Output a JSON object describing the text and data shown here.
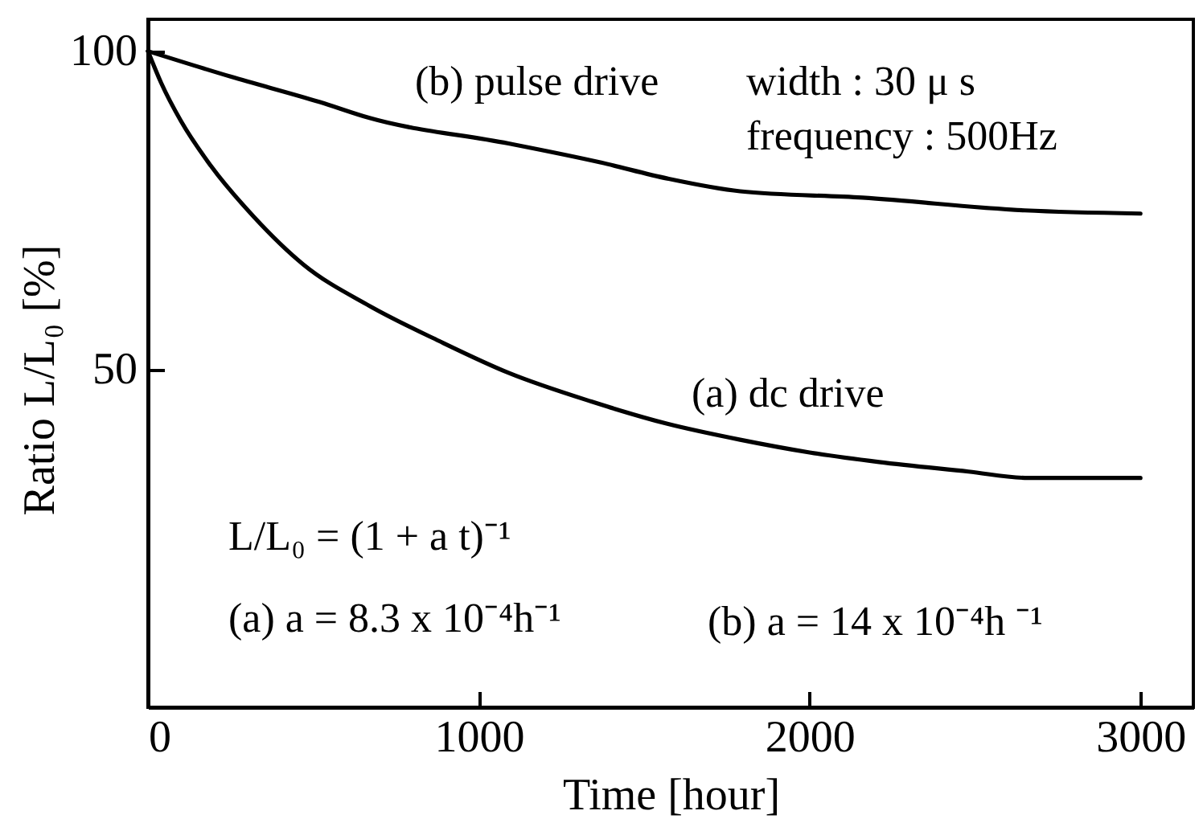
{
  "chart_data": {
    "type": "line",
    "xlabel": "Time [hour]",
    "ylabel": "Ratio L/L₀ [%]",
    "xlim": [
      0,
      3160
    ],
    "ylim": [
      -3,
      105
    ],
    "xticks": [
      0,
      1000,
      2000,
      3000
    ],
    "yticks": [
      50,
      100
    ],
    "grid": false,
    "legend": false,
    "marker": "none",
    "line_style": "solid",
    "series": [
      {
        "name": "(a) dc drive",
        "color": "#000000",
        "x": [
          0,
          40,
          100,
          190,
          320,
          470,
          670,
          880,
          1090,
          1340,
          1570,
          1790,
          2000,
          2210,
          2480,
          2660,
          3000
        ],
        "values": [
          100,
          95,
          89,
          82,
          74,
          66.5,
          60,
          54.5,
          49.5,
          45,
          41.5,
          39,
          37,
          35.5,
          34,
          33,
          33
        ]
      },
      {
        "name": "(b) pulse drive",
        "color": "#000000",
        "x": [
          0,
          250,
          520,
          670,
          1090,
          1370,
          1570,
          1790,
          2160,
          2650,
          3000
        ],
        "values": [
          100,
          96,
          92,
          89.5,
          85.5,
          82.5,
          80,
          78,
          77,
          75,
          74.5
        ]
      }
    ],
    "annotations": [
      "width : 30 μ s",
      "frequency : 500Hz",
      "L/L₀ = (1 + a t)⁻¹",
      "(a) a = 8.3 x 10⁻⁴h⁻¹",
      "(b) a = 14 x 10⁻⁴h ⁻¹"
    ]
  }
}
